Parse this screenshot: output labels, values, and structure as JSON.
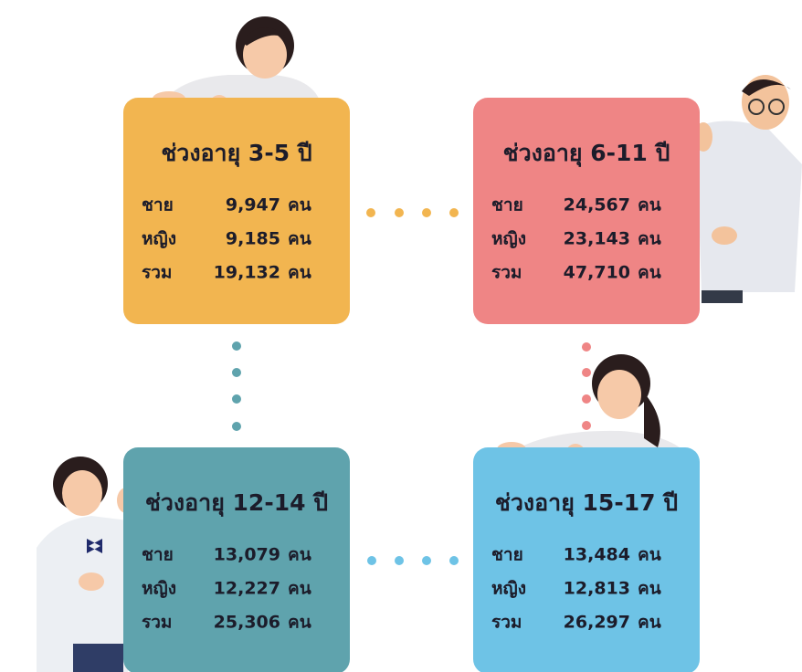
{
  "cards": [
    {
      "title": "ช่วงอายุ 3-5 ปี",
      "rows": [
        {
          "label": "ชาย",
          "value": "9,947",
          "unit": "คน"
        },
        {
          "label": "หญิง",
          "value": "9,185",
          "unit": "คน"
        },
        {
          "label": "รวม",
          "value": "19,132",
          "unit": "คน"
        }
      ]
    },
    {
      "title": "ช่วงอายุ 6-11 ปี",
      "rows": [
        {
          "label": "ชาย",
          "value": "24,567",
          "unit": "คน"
        },
        {
          "label": "หญิง",
          "value": "23,143",
          "unit": "คน"
        },
        {
          "label": "รวม",
          "value": "47,710",
          "unit": "คน"
        }
      ]
    },
    {
      "title": "ช่วงอายุ 12-14 ปี",
      "rows": [
        {
          "label": "ชาย",
          "value": "13,079",
          "unit": "คน"
        },
        {
          "label": "หญิง",
          "value": "12,227",
          "unit": "คน"
        },
        {
          "label": "รวม",
          "value": "25,306",
          "unit": "คน"
        }
      ]
    },
    {
      "title": "ช่วงอายุ 15-17 ปี",
      "rows": [
        {
          "label": "ชาย",
          "value": "13,484",
          "unit": "คน"
        },
        {
          "label": "หญิง",
          "value": "12,813",
          "unit": "คน"
        },
        {
          "label": "รวม",
          "value": "26,297",
          "unit": "คน"
        }
      ]
    }
  ]
}
